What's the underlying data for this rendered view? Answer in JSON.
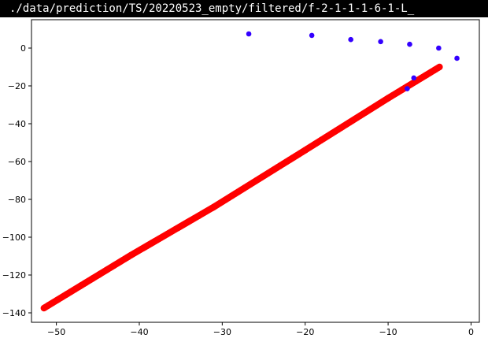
{
  "window": {
    "title": "./data/prediction/TS/20220523_empty/filtered/f-2-1-1-1-6-1-L_"
  },
  "colors": {
    "figure_bg": "#ffffff",
    "red_series": "#ff0000",
    "blue_series": "#3300ff",
    "axis": "#000000"
  },
  "chart_data": {
    "type": "scatter",
    "title": "",
    "xlabel": "",
    "ylabel": "",
    "xlim": [
      -53,
      1
    ],
    "ylim": [
      -145,
      15
    ],
    "xticks": [
      -50,
      -40,
      -30,
      -20,
      -10,
      0
    ],
    "yticks": [
      0,
      -20,
      -40,
      -60,
      -80,
      -100,
      -120,
      -140
    ],
    "xtick_labels": [
      "−50",
      "−40",
      "−30",
      "−20",
      "−10",
      "0"
    ],
    "ytick_labels": [
      "0",
      "−20",
      "−40",
      "−60",
      "−80",
      "−100",
      "−120",
      "−140"
    ],
    "grid": false,
    "legend": "none",
    "series": [
      {
        "color": "#3300ff",
        "marker": "circle",
        "points": [
          [
            -26.8,
            7.5
          ],
          [
            -19.2,
            6.7
          ],
          [
            -14.5,
            4.5
          ],
          [
            -10.9,
            3.4
          ],
          [
            -7.4,
            2.0
          ],
          [
            -3.9,
            0.0
          ],
          [
            -1.7,
            -5.4
          ],
          [
            -6.9,
            -15.8
          ],
          [
            -7.7,
            -21.5
          ]
        ]
      },
      {
        "color": "#ff0000",
        "marker": "circle",
        "line_segments": [
          [
            [
              -51.5,
              -137.5
            ],
            [
              -47.0,
              -125.5
            ]
          ],
          [
            [
              -47.0,
              -125.5
            ],
            [
              -41.0,
              -109.5
            ]
          ],
          [
            [
              -41.0,
              -109.5
            ],
            [
              -31.0,
              -84.0
            ]
          ],
          [
            [
              -31.0,
              -84.0
            ],
            [
              -20.0,
              -54.0
            ]
          ],
          [
            [
              -20.0,
              -54.0
            ],
            [
              -10.0,
              -26.5
            ]
          ],
          [
            [
              -10.0,
              -26.5
            ],
            [
              -3.8,
              -10.0
            ]
          ]
        ]
      }
    ]
  }
}
